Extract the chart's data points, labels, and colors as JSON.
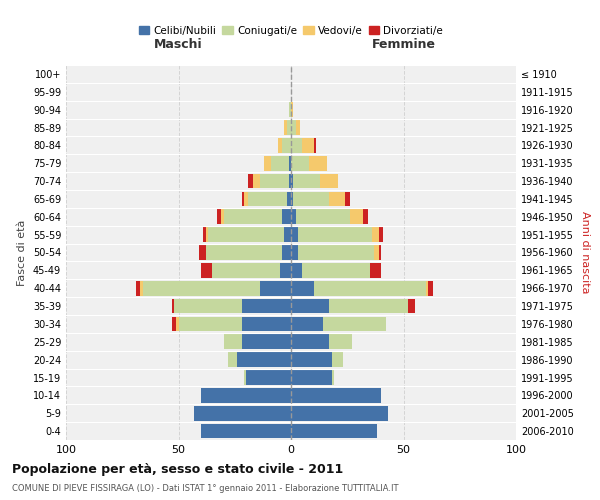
{
  "age_groups": [
    "0-4",
    "5-9",
    "10-14",
    "15-19",
    "20-24",
    "25-29",
    "30-34",
    "35-39",
    "40-44",
    "45-49",
    "50-54",
    "55-59",
    "60-64",
    "65-69",
    "70-74",
    "75-79",
    "80-84",
    "85-89",
    "90-94",
    "95-99",
    "100+"
  ],
  "birth_years": [
    "2006-2010",
    "2001-2005",
    "1996-2000",
    "1991-1995",
    "1986-1990",
    "1981-1985",
    "1976-1980",
    "1971-1975",
    "1966-1970",
    "1961-1965",
    "1956-1960",
    "1951-1955",
    "1946-1950",
    "1941-1945",
    "1936-1940",
    "1931-1935",
    "1926-1930",
    "1921-1925",
    "1916-1920",
    "1911-1915",
    "≤ 1910"
  ],
  "maschi": {
    "celibi": [
      40,
      43,
      40,
      20,
      24,
      22,
      22,
      22,
      14,
      5,
      4,
      3,
      4,
      2,
      1,
      1,
      0,
      0,
      0,
      0,
      0
    ],
    "coniugati": [
      0,
      0,
      0,
      1,
      4,
      8,
      28,
      30,
      52,
      30,
      34,
      34,
      26,
      17,
      13,
      8,
      4,
      2,
      1,
      0,
      0
    ],
    "vedovi": [
      0,
      0,
      0,
      0,
      0,
      0,
      1,
      0,
      1,
      0,
      0,
      1,
      1,
      2,
      3,
      3,
      2,
      1,
      0,
      0,
      0
    ],
    "divorziati": [
      0,
      0,
      0,
      0,
      0,
      0,
      2,
      1,
      2,
      5,
      3,
      1,
      2,
      1,
      2,
      0,
      0,
      0,
      0,
      0,
      0
    ]
  },
  "femmine": {
    "nubili": [
      38,
      43,
      40,
      18,
      18,
      17,
      14,
      17,
      10,
      5,
      3,
      3,
      2,
      1,
      1,
      0,
      0,
      0,
      0,
      0,
      0
    ],
    "coniugate": [
      0,
      0,
      0,
      1,
      5,
      10,
      28,
      35,
      50,
      30,
      34,
      33,
      24,
      16,
      12,
      8,
      5,
      2,
      0,
      0,
      0
    ],
    "vedove": [
      0,
      0,
      0,
      0,
      0,
      0,
      0,
      0,
      1,
      0,
      2,
      3,
      6,
      7,
      8,
      8,
      5,
      2,
      1,
      0,
      0
    ],
    "divorziate": [
      0,
      0,
      0,
      0,
      0,
      0,
      0,
      3,
      2,
      5,
      1,
      2,
      2,
      2,
      0,
      0,
      1,
      0,
      0,
      0,
      0
    ]
  },
  "colors": {
    "celibi_nubili": "#4472a8",
    "coniugati": "#c5d89e",
    "vedovi": "#f5c96c",
    "divorziati": "#cc2222"
  },
  "xlim": 100,
  "title": "Popolazione per età, sesso e stato civile - 2011",
  "subtitle": "COMUNE DI PIEVE FISSIRAGA (LO) - Dati ISTAT 1° gennaio 2011 - Elaborazione TUTTITALIA.IT",
  "xlabel_left": "Maschi",
  "xlabel_right": "Femmine",
  "ylabel_left": "Fasce di età",
  "ylabel_right": "Anni di nascita",
  "legend_labels": [
    "Celibi/Nubili",
    "Coniugati/e",
    "Vedovi/e",
    "Divorziati/e"
  ],
  "bg_color": "#ffffff",
  "plot_bg_color": "#f0f0f0",
  "grid_color": "#cccccc"
}
